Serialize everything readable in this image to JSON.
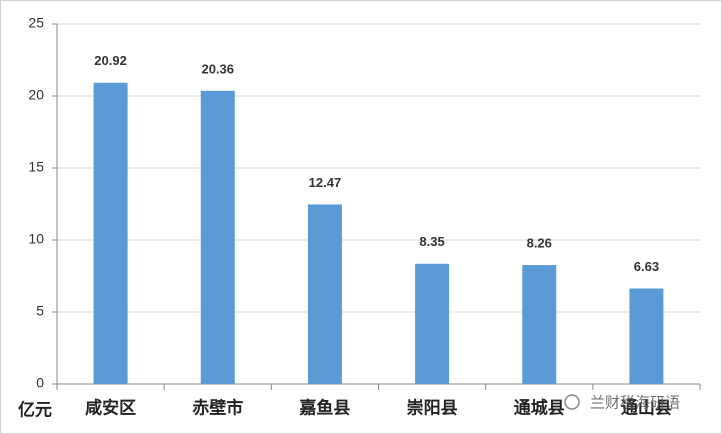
{
  "chart_data": {
    "type": "bar",
    "unit_label": "亿元",
    "categories": [
      "咸安区",
      "赤壁市",
      "嘉鱼县",
      "崇阳县",
      "通城县",
      "通山县"
    ],
    "values": [
      20.92,
      20.36,
      12.47,
      8.35,
      8.26,
      6.63
    ],
    "color": "#5b9bd5",
    "ylim": [
      0,
      25
    ],
    "yticks": [
      0,
      5,
      10,
      15,
      20,
      25
    ],
    "grid": true
  },
  "watermark": "兰财税海研语"
}
